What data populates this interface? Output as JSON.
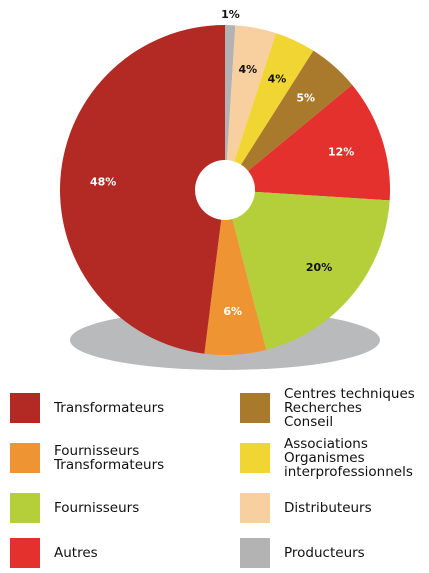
{
  "chart_data": {
    "type": "donut",
    "series": [
      {
        "name": "Producteurs",
        "color": "#b3b3b3",
        "values": [
          1
        ],
        "value_labels": [
          "1%"
        ]
      },
      {
        "name": "Distributeurs",
        "color": "#f8cf9e",
        "values": [
          4
        ],
        "value_labels": [
          "4%"
        ]
      },
      {
        "name": "Associations\nOrganismes\ninterprofessionnels",
        "color": "#f1d532",
        "values": [
          4
        ],
        "value_labels": [
          "4%"
        ]
      },
      {
        "name": "Centres techniques\nRecherches\nConseil",
        "color": "#a97a2b",
        "values": [
          5
        ],
        "value_labels": [
          "5%"
        ]
      },
      {
        "name": "Autres",
        "color": "#e4312d",
        "values": [
          12
        ],
        "value_labels": [
          "12%"
        ]
      },
      {
        "name": "Fournisseurs",
        "color": "#b5cf3b",
        "values": [
          20
        ],
        "value_labels": [
          "20%"
        ]
      },
      {
        "name": "Fournisseurs\nTransformateurs",
        "color": "#ee9433",
        "values": [
          6
        ],
        "value_labels": [
          "6%"
        ]
      },
      {
        "name": "Transformateurs",
        "color": "#b32a25",
        "values": [
          48
        ],
        "value_labels": [
          "48%"
        ]
      }
    ]
  }
}
